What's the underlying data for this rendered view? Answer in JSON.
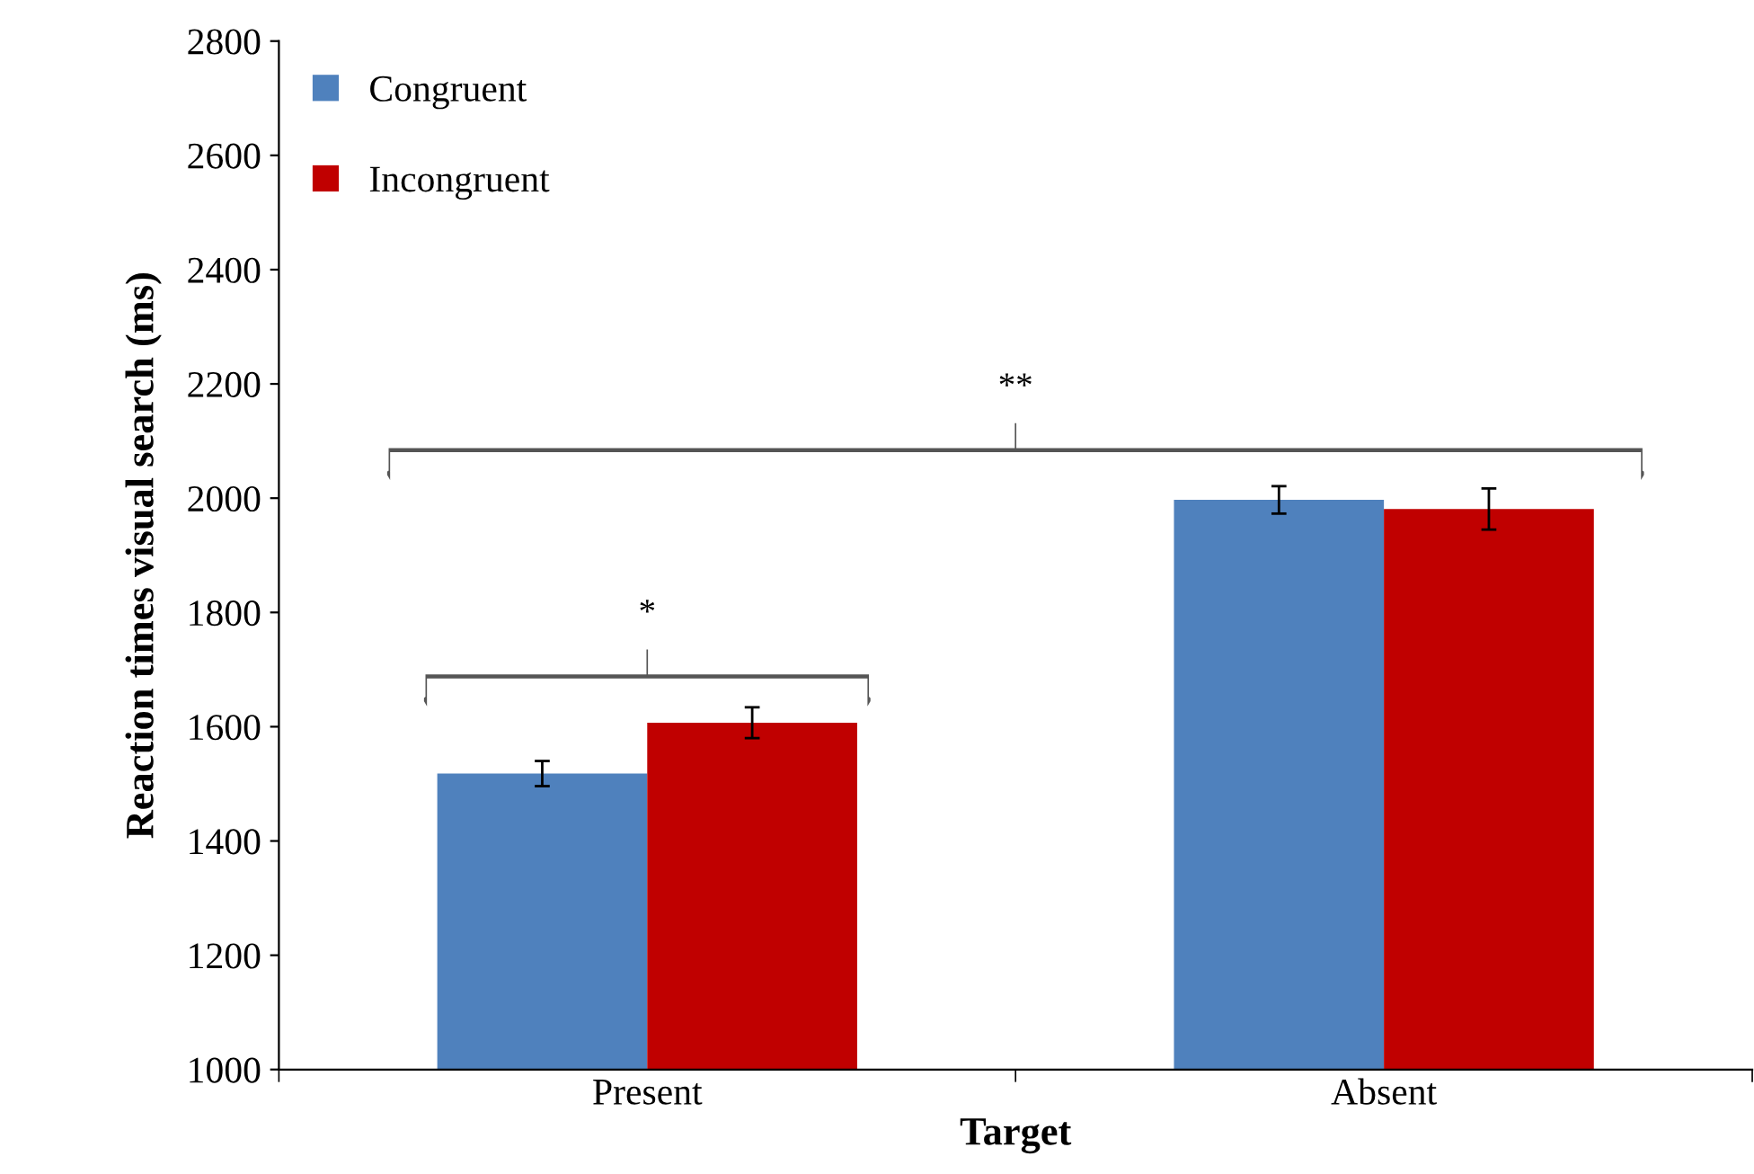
{
  "chart_data": {
    "type": "bar",
    "xlabel": "Target",
    "ylabel": "Reaction times visual search (ms)",
    "categories": [
      "Present",
      "Absent"
    ],
    "series": [
      {
        "name": "Congruent",
        "color": "#4f81bd",
        "values": [
          1518,
          1997
        ],
        "errors": [
          22,
          24
        ]
      },
      {
        "name": "Incongruent",
        "color": "#c00000",
        "values": [
          1607,
          1981
        ],
        "errors": [
          27,
          36
        ]
      }
    ],
    "ylim": [
      1000,
      2800
    ],
    "yticks": [
      1000,
      1200,
      1400,
      1600,
      1800,
      2000,
      2200,
      2400,
      2600,
      2800
    ],
    "grid": false,
    "legend": "top left",
    "annotations": [
      "*",
      "**"
    ]
  }
}
